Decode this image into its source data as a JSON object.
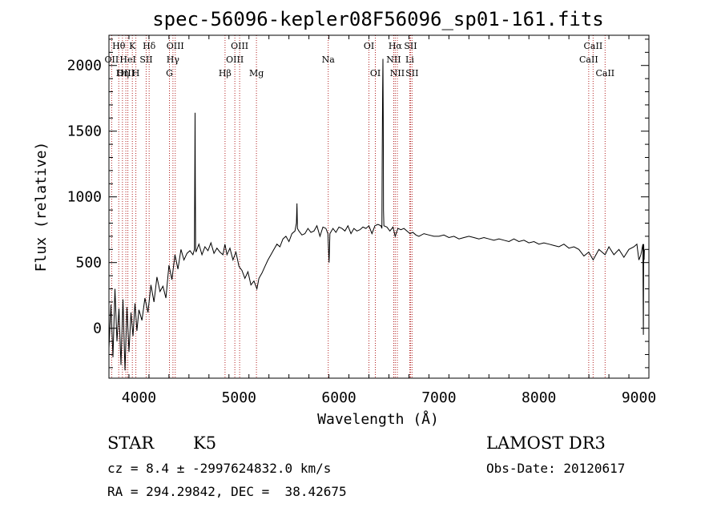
{
  "chart_data": {
    "type": "line",
    "title": "spec-56096-kepler08F56096_sp01-161.fits",
    "xlabel": "Wavelength (Å)",
    "ylabel": "Flux (relative)",
    "xlim": [
      3700,
      9100
    ],
    "ylim": [
      -380,
      2230
    ],
    "x_ticks": [
      4000,
      5000,
      6000,
      7000,
      8000,
      9000
    ],
    "y_ticks": [
      0,
      500,
      1000,
      1500,
      2000
    ],
    "grid": false,
    "series": [
      {
        "name": "flux",
        "x": [
          3700,
          3720,
          3740,
          3760,
          3780,
          3800,
          3820,
          3840,
          3860,
          3880,
          3900,
          3920,
          3940,
          3960,
          3980,
          4000,
          4030,
          4060,
          4090,
          4120,
          4150,
          4180,
          4210,
          4240,
          4270,
          4300,
          4330,
          4360,
          4390,
          4420,
          4450,
          4480,
          4510,
          4540,
          4555,
          4558,
          4561,
          4564,
          4567,
          4570,
          4600,
          4630,
          4660,
          4690,
          4720,
          4750,
          4780,
          4810,
          4840,
          4860,
          4880,
          4910,
          4940,
          4970,
          5000,
          5030,
          5060,
          5090,
          5120,
          5150,
          5180,
          5200,
          5230,
          5260,
          5290,
          5320,
          5350,
          5380,
          5410,
          5440,
          5470,
          5500,
          5530,
          5560,
          5575,
          5580,
          5585,
          5600,
          5630,
          5660,
          5690,
          5720,
          5750,
          5780,
          5810,
          5840,
          5870,
          5890,
          5896,
          5902,
          5910,
          5940,
          5970,
          6000,
          6030,
          6060,
          6090,
          6120,
          6150,
          6180,
          6210,
          6240,
          6270,
          6300,
          6330,
          6360,
          6390,
          6420,
          6430,
          6433,
          6437,
          6440,
          6443,
          6446,
          6450,
          6480,
          6510,
          6540,
          6563,
          6590,
          6620,
          6650,
          6680,
          6710,
          6740,
          6770,
          6800,
          6850,
          6900,
          6950,
          7000,
          7050,
          7100,
          7150,
          7200,
          7250,
          7300,
          7350,
          7400,
          7450,
          7500,
          7550,
          7600,
          7650,
          7700,
          7750,
          7800,
          7850,
          7900,
          7950,
          8000,
          8050,
          8100,
          8150,
          8200,
          8250,
          8300,
          8350,
          8400,
          8450,
          8498,
          8542,
          8600,
          8662,
          8700,
          8750,
          8800,
          8850,
          8900,
          8950,
          8980,
          9000,
          9020,
          9040,
          9045,
          9048,
          9052,
          9055
        ],
        "y": [
          -150,
          180,
          -220,
          300,
          -100,
          150,
          -280,
          220,
          -320,
          160,
          -180,
          120,
          -60,
          190,
          -20,
          140,
          60,
          230,
          120,
          330,
          200,
          390,
          280,
          320,
          230,
          480,
          370,
          560,
          450,
          600,
          520,
          570,
          590,
          560,
          600,
          1100,
          1640,
          1100,
          600,
          580,
          640,
          560,
          620,
          590,
          650,
          570,
          610,
          580,
          560,
          640,
          560,
          610,
          520,
          580,
          470,
          440,
          380,
          430,
          330,
          360,
          300,
          380,
          420,
          470,
          520,
          560,
          600,
          640,
          620,
          680,
          700,
          660,
          720,
          740,
          800,
          950,
          760,
          740,
          710,
          720,
          760,
          730,
          740,
          780,
          700,
          770,
          760,
          720,
          600,
          500,
          720,
          760,
          730,
          770,
          760,
          740,
          780,
          720,
          760,
          740,
          750,
          770,
          760,
          780,
          720,
          780,
          790,
          780,
          760,
          1300,
          1800,
          2050,
          1600,
          900,
          780,
          770,
          740,
          770,
          700,
          760,
          750,
          760,
          740,
          720,
          730,
          710,
          700,
          720,
          710,
          700,
          700,
          710,
          690,
          700,
          680,
          690,
          700,
          690,
          680,
          690,
          680,
          670,
          680,
          670,
          660,
          680,
          660,
          670,
          650,
          660,
          640,
          650,
          640,
          630,
          620,
          640,
          610,
          620,
          600,
          550,
          580,
          520,
          600,
          560,
          620,
          560,
          600,
          540,
          600,
          620,
          640,
          520,
          560,
          640,
          -50,
          640,
          520,
          600
        ]
      }
    ],
    "lines": [
      {
        "label": "Hθ",
        "wavelength": 3798,
        "row": 1
      },
      {
        "label": "OII",
        "wavelength": 3727,
        "row": 2
      },
      {
        "label": "OIII",
        "wavelength": 3869,
        "row": 3
      },
      {
        "label": "K",
        "wavelength": 3934,
        "row": 1
      },
      {
        "label": "HeI",
        "wavelength": 3889,
        "row": 2
      },
      {
        "label": "Hη",
        "wavelength": 3835,
        "row": 3
      },
      {
        "label": "SII",
        "wavelength": 4072,
        "row": 2
      },
      {
        "label": "H",
        "wavelength": 3969,
        "row": 3
      },
      {
        "label": "Hδ",
        "wavelength": 4102,
        "row": 1
      },
      {
        "label": "OIII",
        "wavelength": 4363,
        "row": 1
      },
      {
        "label": "Hγ",
        "wavelength": 4340,
        "row": 2
      },
      {
        "label": "G",
        "wavelength": 4305,
        "row": 3
      },
      {
        "label": "OIII",
        "wavelength": 5007,
        "row": 1
      },
      {
        "label": "OIII",
        "wavelength": 4959,
        "row": 2
      },
      {
        "label": "Hβ",
        "wavelength": 4861,
        "row": 3
      },
      {
        "label": "Mg",
        "wavelength": 5175,
        "row": 3
      },
      {
        "label": "Na",
        "wavelength": 5893,
        "row": 2
      },
      {
        "label": "OI",
        "wavelength": 6300,
        "row": 1
      },
      {
        "label": "OI",
        "wavelength": 6364,
        "row": 3
      },
      {
        "label": "Hα",
        "wavelength": 6563,
        "row": 1
      },
      {
        "label": "NII",
        "wavelength": 6548,
        "row": 2
      },
      {
        "label": "NII",
        "wavelength": 6584,
        "row": 3
      },
      {
        "label": "SII",
        "wavelength": 6716,
        "row": 1
      },
      {
        "label": "Li",
        "wavelength": 6708,
        "row": 2
      },
      {
        "label": "SII",
        "wavelength": 6731,
        "row": 3
      },
      {
        "label": "CaII",
        "wavelength": 8498,
        "row": 2
      },
      {
        "label": "CaII",
        "wavelength": 8542,
        "row": 1
      },
      {
        "label": "CaII",
        "wavelength": 8662,
        "row": 3
      }
    ]
  },
  "info": {
    "object_class": "STAR",
    "subclass": "K5",
    "survey": "LAMOST DR3",
    "cz": "cz = 8.4 ± -2997624832.0 km/s",
    "obs_date": "Obs-Date: 20120617",
    "coords": "RA = 294.29842, DEC =  38.42675"
  },
  "colors": {
    "spectrum": "#000000",
    "line_markers": "#b22222",
    "axes": "#000000"
  }
}
